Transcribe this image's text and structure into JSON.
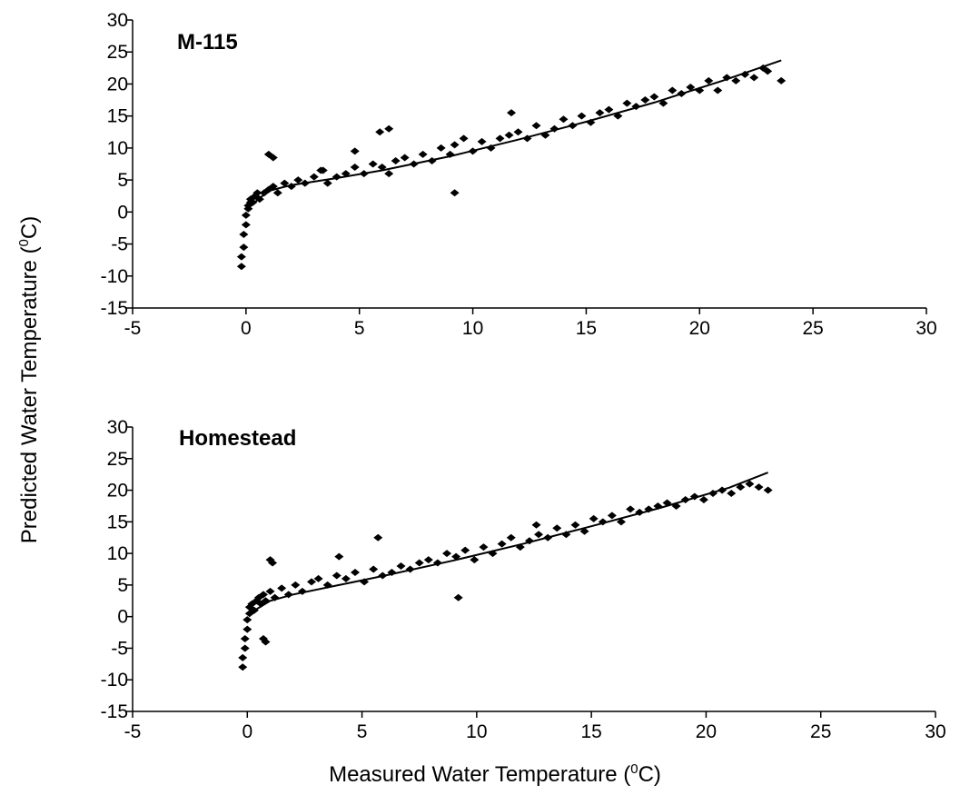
{
  "figure": {
    "ylabel": "Predicted Water Temperature (°C)",
    "xlabel": "Measured Water Temperature (°C)",
    "ylabel_main": "Predicted Water Temperature (",
    "ylabel_sup": "0",
    "ylabel_end": "C)",
    "xlabel_main": "Measured Water Temperature (",
    "xlabel_sup": "0",
    "xlabel_end": "C)"
  },
  "chart_data": [
    {
      "type": "scatter",
      "title": "M-115",
      "xlabel": "Measured Water Temperature (°C)",
      "ylabel": "Predicted Water Temperature (°C)",
      "xlim": [
        -5,
        30
      ],
      "ylim": [
        -15,
        30
      ],
      "xticks": [
        -5,
        0,
        5,
        10,
        15,
        20,
        25,
        30
      ],
      "yticks": [
        -15,
        -10,
        -5,
        0,
        5,
        10,
        15,
        20,
        25,
        30
      ],
      "grid": false,
      "marker_color": "#000000",
      "trendline": {
        "x": [
          0,
          1,
          2,
          4,
          6,
          9,
          12,
          15,
          18,
          21,
          23.6
        ],
        "y": [
          0.4,
          3.3,
          4.2,
          5.3,
          6.5,
          8.7,
          11.3,
          14.1,
          17.1,
          20.5,
          23.7
        ]
      },
      "points": {
        "x": [
          -0.2,
          -0.2,
          -0.1,
          -0.1,
          0.0,
          0.0,
          0.1,
          0.1,
          0.2,
          0.2,
          0.3,
          0.4,
          0.5,
          0.6,
          0.8,
          1.0,
          1.2,
          1.4,
          1.7,
          2.0,
          2.3,
          2.6,
          3.0,
          3.3,
          3.6,
          4.0,
          4.4,
          4.8,
          5.2,
          5.6,
          6.0,
          6.3,
          6.6,
          7.0,
          7.4,
          7.8,
          8.2,
          8.6,
          9.0,
          9.2,
          9.6,
          10.0,
          10.4,
          10.8,
          11.2,
          11.6,
          12.0,
          12.4,
          12.8,
          13.2,
          13.6,
          14.0,
          14.4,
          14.8,
          15.2,
          15.6,
          16.0,
          16.4,
          16.8,
          17.2,
          17.6,
          18.0,
          18.4,
          18.8,
          19.2,
          19.6,
          20.0,
          20.4,
          20.8,
          21.2,
          21.6,
          22.0,
          22.4,
          22.8,
          23.0,
          23.6,
          1.0,
          1.2,
          5.9,
          6.3,
          9.2,
          11.7,
          3.4,
          4.8
        ],
        "y": [
          -8.5,
          -7.0,
          -5.5,
          -3.5,
          -2.0,
          -0.5,
          0.5,
          1.0,
          1.5,
          2.0,
          1.5,
          2.5,
          3.0,
          2.0,
          3.0,
          3.5,
          4.0,
          3.0,
          4.5,
          4.0,
          5.0,
          4.5,
          5.5,
          6.5,
          4.5,
          5.5,
          6.0,
          7.0,
          6.0,
          7.5,
          7.0,
          6.0,
          8.0,
          8.5,
          7.5,
          9.0,
          8.0,
          10.0,
          9.0,
          10.5,
          11.5,
          9.5,
          11.0,
          10.0,
          11.5,
          12.0,
          12.5,
          11.5,
          13.5,
          12.0,
          13.0,
          14.5,
          13.5,
          15.0,
          14.0,
          15.5,
          16.0,
          15.0,
          17.0,
          16.5,
          17.5,
          18.0,
          17.0,
          19.0,
          18.5,
          19.5,
          19.0,
          20.5,
          19.0,
          21.0,
          20.5,
          21.5,
          21.0,
          22.5,
          22.0,
          20.5,
          9.0,
          8.5,
          12.5,
          13.0,
          3.0,
          15.5,
          6.5,
          9.5
        ]
      }
    },
    {
      "type": "scatter",
      "title": "Homestead",
      "xlabel": "Measured Water Temperature (°C)",
      "ylabel": "Predicted Water Temperature (°C)",
      "xlim": [
        -5,
        30
      ],
      "ylim": [
        -15,
        30
      ],
      "xticks": [
        -5,
        0,
        5,
        10,
        15,
        20,
        25,
        30
      ],
      "yticks": [
        -15,
        -10,
        -5,
        0,
        5,
        10,
        15,
        20,
        25,
        30
      ],
      "grid": false,
      "marker_color": "#000000",
      "trendline": {
        "x": [
          0,
          1,
          2,
          4,
          6,
          9,
          12,
          15,
          18,
          21,
          22.7
        ],
        "y": [
          0.3,
          2.5,
          3.5,
          5.0,
          6.5,
          8.9,
          11.5,
          14.3,
          17.2,
          20.4,
          22.8
        ]
      },
      "points": {
        "x": [
          -0.2,
          -0.2,
          -0.1,
          -0.1,
          0.0,
          0.0,
          0.1,
          0.1,
          0.2,
          0.3,
          0.4,
          0.5,
          0.6,
          0.7,
          0.8,
          1.0,
          1.2,
          1.5,
          1.8,
          2.1,
          2.4,
          2.8,
          3.1,
          3.5,
          3.9,
          4.3,
          4.7,
          5.1,
          5.5,
          5.9,
          6.3,
          6.7,
          7.1,
          7.5,
          7.9,
          8.3,
          8.7,
          9.1,
          9.5,
          9.9,
          10.3,
          10.7,
          11.1,
          11.5,
          11.9,
          12.3,
          12.7,
          13.1,
          13.5,
          13.9,
          14.3,
          14.7,
          15.1,
          15.5,
          15.9,
          16.3,
          16.7,
          17.1,
          17.5,
          17.9,
          18.3,
          18.7,
          19.1,
          19.5,
          19.9,
          20.3,
          20.7,
          21.1,
          21.5,
          21.9,
          22.3,
          22.7,
          1.0,
          1.1,
          0.7,
          0.8,
          9.2,
          12.6,
          4.0,
          5.7
        ],
        "y": [
          -8.0,
          -6.5,
          -5.0,
          -3.5,
          -2.0,
          -0.5,
          0.5,
          1.5,
          2.0,
          1.0,
          2.5,
          3.0,
          2.0,
          3.5,
          2.5,
          4.0,
          3.0,
          4.5,
          3.5,
          5.0,
          4.0,
          5.5,
          6.0,
          5.0,
          6.5,
          6.0,
          7.0,
          5.5,
          7.5,
          6.5,
          7.0,
          8.0,
          7.5,
          8.5,
          9.0,
          8.5,
          10.0,
          9.5,
          10.5,
          9.0,
          11.0,
          10.0,
          11.5,
          12.5,
          11.0,
          12.0,
          13.0,
          12.5,
          14.0,
          13.0,
          14.5,
          13.5,
          15.5,
          15.0,
          16.0,
          15.0,
          17.0,
          16.5,
          17.0,
          17.5,
          18.0,
          17.5,
          18.5,
          19.0,
          18.5,
          19.5,
          20.0,
          19.5,
          20.5,
          21.0,
          20.5,
          20.0,
          9.0,
          8.5,
          -3.5,
          -4.0,
          3.0,
          14.5,
          9.5,
          12.5
        ]
      }
    }
  ]
}
